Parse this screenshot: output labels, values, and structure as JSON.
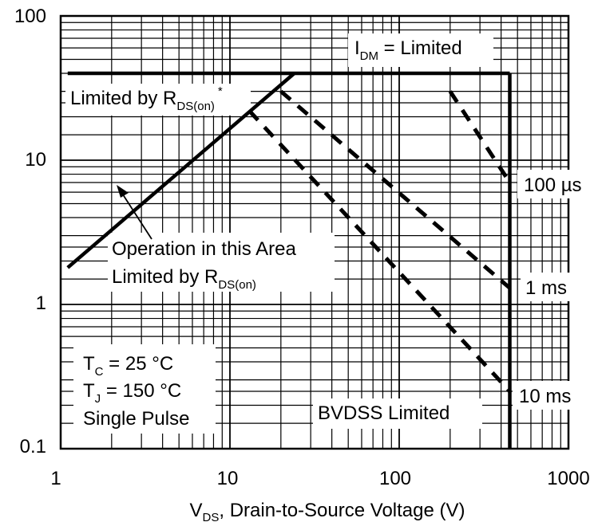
{
  "chart_data": {
    "type": "line",
    "x_scale": "log",
    "y_scale": "log",
    "xlim": [
      1,
      1000
    ],
    "ylim": [
      0.1,
      100
    ],
    "grid": true,
    "x_ticks": [
      "1",
      "10",
      "100",
      "1000"
    ],
    "y_ticks": [
      "100",
      "10",
      "1",
      "0.1"
    ],
    "xlabel": {
      "main": "V",
      "sub": "DS",
      "rest": ", Drain-to-Source Voltage (V)"
    },
    "series": [
      {
        "name": "",
        "style": "solid",
        "x": [
          1.1,
          24
        ],
        "y": [
          1.8,
          40
        ]
      },
      {
        "name": "",
        "style": "solid",
        "x": [
          1.1,
          450
        ],
        "y": [
          40,
          40
        ]
      },
      {
        "name": "",
        "style": "solid",
        "x": [
          450,
          450
        ],
        "y": [
          40,
          0.1
        ]
      },
      {
        "name": "",
        "style": "dashed",
        "x": [
          13,
          450
        ],
        "y": [
          22,
          0.25
        ]
      },
      {
        "name": "",
        "style": "dashed",
        "x": [
          20,
          450
        ],
        "y": [
          30,
          1.3
        ]
      },
      {
        "name": "",
        "style": "dashed",
        "x": [
          200,
          450
        ],
        "y": [
          30,
          7
        ]
      }
    ],
    "annotations": {
      "idm": {
        "main": "I",
        "sub": "DM",
        "rest": " = Limited"
      },
      "limited_rds": {
        "main": "Limited by R",
        "sub": "DS(on)",
        "star": "*"
      },
      "operation_line1": "Operation in this Area",
      "operation_line2": {
        "main": "Limited by R",
        "sub": "DS(on)"
      },
      "bvdss": "BVDSS Limited",
      "p100us": "100 µs",
      "p1ms": "1 ms",
      "p10ms": "10 ms",
      "conditions": {
        "tc": {
          "main": "T",
          "sub": "C",
          "rest": " = 25 °C"
        },
        "tj": {
          "main": "T",
          "sub": "J",
          "rest": " = 150 °C"
        },
        "pulse": "Single Pulse"
      }
    }
  }
}
